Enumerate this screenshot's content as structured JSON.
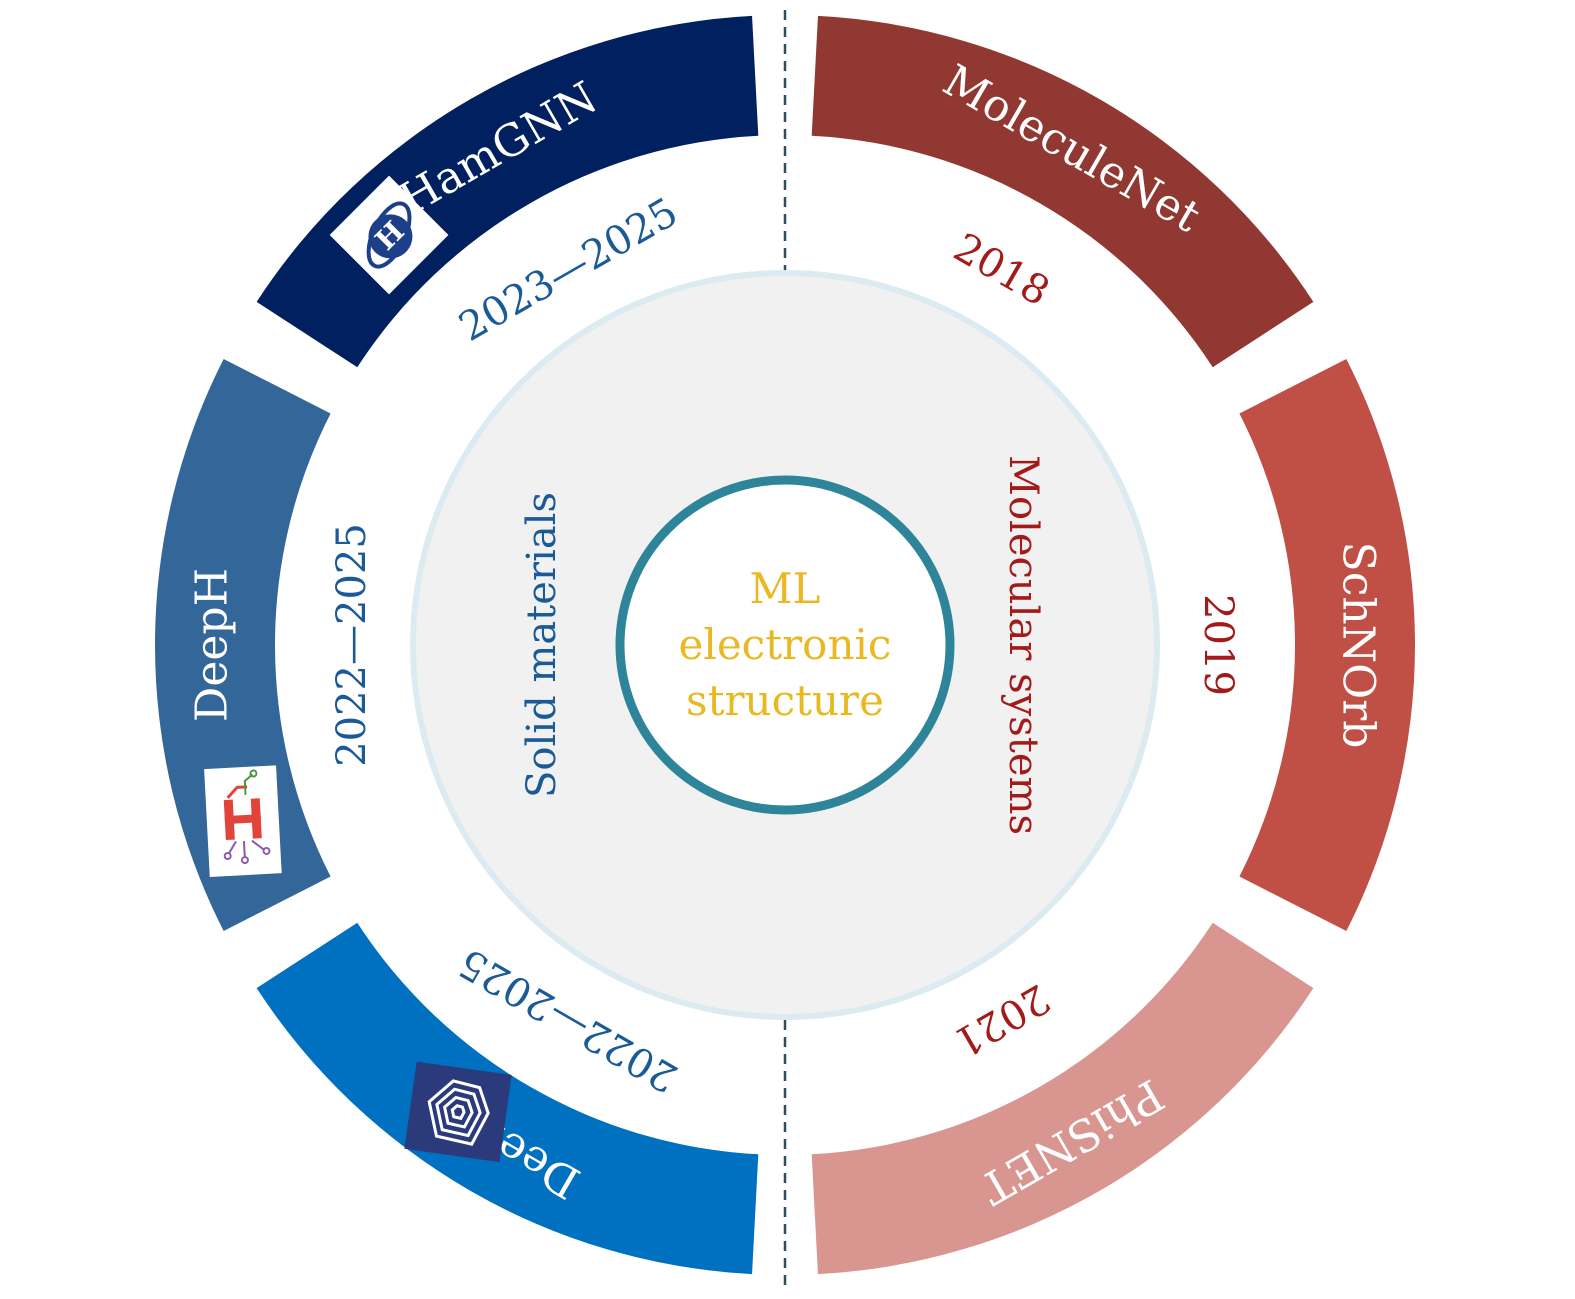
{
  "center": {
    "lines": [
      "ML",
      "electronic",
      "structure"
    ],
    "text_color": "#e8b923",
    "ring_color": "#2e8599"
  },
  "categories": {
    "left": {
      "label": "Solid materials",
      "color": "#1a5a96"
    },
    "right": {
      "label": "Molecular systems",
      "color": "#a31a1a"
    }
  },
  "inner_disc_color": "#f1f1f1",
  "inner_disc_border_color": "#dcebf2",
  "divider_color": "#2f4f5f",
  "segments": [
    {
      "id": "moleculenet",
      "name": "MoleculeNet",
      "year": "2018",
      "color": "#923832",
      "year_color": "#a31a1a",
      "icon": null
    },
    {
      "id": "schnorb",
      "name": "SchNOrb",
      "year": "2019",
      "color": "#c05046",
      "year_color": "#a31a1a",
      "icon": null
    },
    {
      "id": "phisnet",
      "name": "PhiSNET",
      "year": "2021",
      "color": "#d99590",
      "year_color": "#a31a1a",
      "icon": null
    },
    {
      "id": "deeptb",
      "name": "DeePTB",
      "year": "2022—2025",
      "color": "#0070c0",
      "year_color": "#1a5a96",
      "icon": "deeptb-logo-icon"
    },
    {
      "id": "deeph",
      "name": "DeepH",
      "year": "2022—2025",
      "color": "#336699",
      "year_color": "#1a5a96",
      "icon": "deeph-logo-icon"
    },
    {
      "id": "hamgnn",
      "name": "HamGNN",
      "year": "2023—2025",
      "color": "#002060",
      "year_color": "#1a5a96",
      "icon": "hamgnn-logo-icon"
    }
  ]
}
